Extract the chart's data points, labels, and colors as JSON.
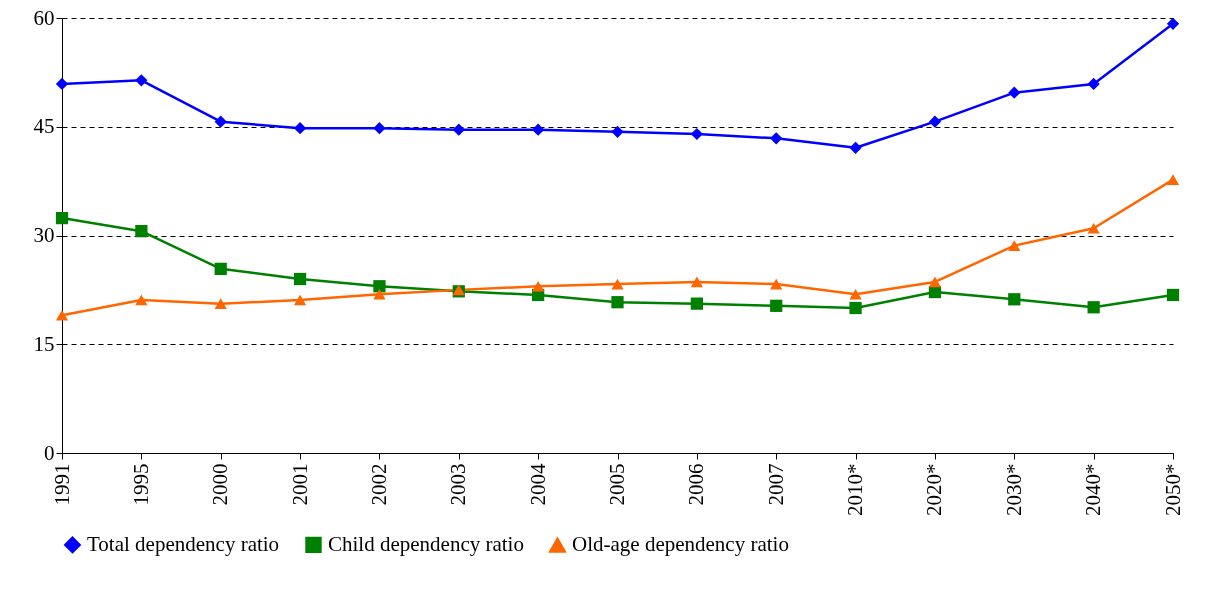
{
  "chart_data": {
    "type": "line",
    "categories": [
      "1991",
      "1995",
      "2000",
      "2001",
      "2002",
      "2003",
      "2004",
      "2005",
      "2006",
      "2007",
      "2010*",
      "2020*",
      "2030*",
      "2040*",
      "2050*"
    ],
    "ylim": [
      0,
      60
    ],
    "yticks": [
      0,
      15,
      30,
      45,
      60
    ],
    "grid": "y",
    "legend": "bottom",
    "line_style": "solid",
    "series": [
      {
        "name": "Total dependency ratio",
        "color": "#0000ff",
        "marker": "diamond",
        "values": [
          50.9,
          51.4,
          45.7,
          44.8,
          44.8,
          44.6,
          44.6,
          44.3,
          44.0,
          43.4,
          42.1,
          45.7,
          49.7,
          50.9,
          59.2
        ]
      },
      {
        "name": "Child dependency ratio",
        "color": "#008000",
        "marker": "square",
        "values": [
          32.4,
          30.6,
          25.4,
          24.0,
          23.0,
          22.3,
          21.8,
          20.8,
          20.6,
          20.3,
          20.0,
          22.2,
          21.2,
          20.1,
          21.8
        ]
      },
      {
        "name": "Old-age dependency ratio",
        "color": "#ff6600",
        "marker": "triangle",
        "values": [
          19.0,
          21.1,
          20.6,
          21.1,
          21.9,
          22.5,
          23.0,
          23.3,
          23.6,
          23.3,
          21.9,
          23.6,
          28.6,
          31.0,
          37.7
        ]
      }
    ]
  }
}
